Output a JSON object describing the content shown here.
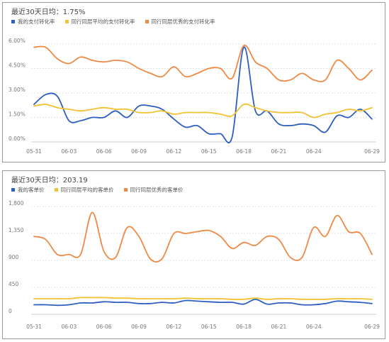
{
  "colors": {
    "mine": "#2e5fbf",
    "avg": "#f1c232",
    "best": "#ef8a46",
    "grid": "#e3e3e3",
    "axis": "#cccccc"
  },
  "chart_data": [
    {
      "type": "line",
      "summary": "最近30天日均：1.75%",
      "y_tick_labels": [
        "0.00%",
        "1.50%",
        "3.00%",
        "4.50%",
        "6.00%"
      ],
      "ylim": [
        0,
        6.0
      ],
      "grid": true,
      "legend_position": "top-left",
      "x_tick_labels": [
        "05-31",
        "06-03",
        "06-06",
        "06-09",
        "06-12",
        "06-15",
        "06-18",
        "06-21",
        "06-24",
        "06-29"
      ],
      "x_tick_index": [
        0,
        3,
        6,
        9,
        12,
        15,
        18,
        21,
        24,
        29
      ],
      "categories": [
        "05-31",
        "06-01",
        "06-02",
        "06-03",
        "06-04",
        "06-05",
        "06-06",
        "06-07",
        "06-08",
        "06-09",
        "06-10",
        "06-11",
        "06-12",
        "06-13",
        "06-14",
        "06-15",
        "06-16",
        "06-17",
        "06-18",
        "06-19",
        "06-20",
        "06-21",
        "06-22",
        "06-23",
        "06-24",
        "06-25",
        "06-26",
        "06-27",
        "06-28",
        "06-29"
      ],
      "series": [
        {
          "name": "我的支付转化率",
          "color_key": "mine",
          "values": [
            2.3,
            2.9,
            2.8,
            1.3,
            1.3,
            1.5,
            1.5,
            1.9,
            1.5,
            2.2,
            2.2,
            2.0,
            1.4,
            0.9,
            1.0,
            0.5,
            0.5,
            0.3,
            5.8,
            1.9,
            1.9,
            1.1,
            1.0,
            1.1,
            1.0,
            0.6,
            1.6,
            1.5,
            2.0,
            1.4
          ]
        },
        {
          "name": "同行同层平均的支付转化率",
          "color_key": "avg",
          "values": [
            2.2,
            2.3,
            2.1,
            2.0,
            1.9,
            2.0,
            2.1,
            2.0,
            2.0,
            1.8,
            1.8,
            1.9,
            1.7,
            1.8,
            1.8,
            1.8,
            1.7,
            1.6,
            2.3,
            2.1,
            1.9,
            1.8,
            1.8,
            1.8,
            1.5,
            1.7,
            1.8,
            2.0,
            1.9,
            2.1
          ]
        },
        {
          "name": "同行同层优秀的支付转化率",
          "color_key": "best",
          "values": [
            5.8,
            5.8,
            5.1,
            4.8,
            5.2,
            5.0,
            4.9,
            5.0,
            4.9,
            4.5,
            4.2,
            4.0,
            4.6,
            4.0,
            4.2,
            4.5,
            4.5,
            3.9,
            5.9,
            4.9,
            4.5,
            3.8,
            3.8,
            4.2,
            3.8,
            3.8,
            5.0,
            4.5,
            3.8,
            4.4
          ]
        }
      ]
    },
    {
      "type": "line",
      "summary": "最近30天日均：203.19",
      "y_tick_labels": [
        "0",
        "450",
        "900",
        "1,350",
        "1,800"
      ],
      "ylim": [
        0,
        1800
      ],
      "grid": true,
      "legend_position": "top-left",
      "x_tick_labels": [
        "05-31",
        "06-03",
        "06-06",
        "06-09",
        "06-12",
        "06-15",
        "06-18",
        "06-21",
        "06-24",
        "06-29"
      ],
      "x_tick_index": [
        0,
        3,
        6,
        9,
        12,
        15,
        18,
        21,
        24,
        29
      ],
      "categories": [
        "05-31",
        "06-01",
        "06-02",
        "06-03",
        "06-04",
        "06-05",
        "06-06",
        "06-07",
        "06-08",
        "06-09",
        "06-10",
        "06-11",
        "06-12",
        "06-13",
        "06-14",
        "06-15",
        "06-16",
        "06-17",
        "06-18",
        "06-19",
        "06-20",
        "06-21",
        "06-22",
        "06-23",
        "06-24",
        "06-25",
        "06-26",
        "06-27",
        "06-28",
        "06-29"
      ],
      "series": [
        {
          "name": "我的客单价",
          "color_key": "mine",
          "values": [
            160,
            160,
            150,
            160,
            190,
            190,
            210,
            200,
            200,
            180,
            180,
            200,
            190,
            230,
            220,
            210,
            200,
            200,
            170,
            250,
            170,
            190,
            190,
            160,
            160,
            180,
            220,
            210,
            200,
            180
          ]
        },
        {
          "name": "同行同层平均的客单价",
          "color_key": "avg",
          "values": [
            260,
            260,
            260,
            260,
            280,
            280,
            280,
            270,
            270,
            260,
            260,
            260,
            260,
            270,
            260,
            260,
            260,
            250,
            250,
            270,
            250,
            260,
            260,
            250,
            250,
            250,
            260,
            260,
            260,
            250
          ]
        },
        {
          "name": "同行同层优秀的客单价",
          "color_key": "best",
          "values": [
            1300,
            1250,
            1000,
            1000,
            1000,
            1700,
            1050,
            950,
            1450,
            1300,
            920,
            930,
            1350,
            1350,
            1380,
            1400,
            1300,
            1100,
            1200,
            1150,
            1300,
            1250,
            950,
            950,
            1450,
            1300,
            1650,
            1380,
            1350,
            1000
          ]
        }
      ]
    }
  ]
}
